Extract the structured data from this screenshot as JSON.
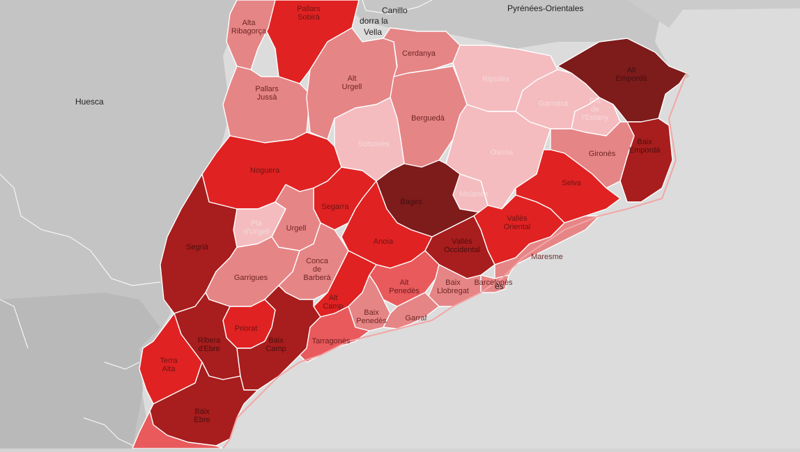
{
  "colors": {
    "water": "#dcdcdc",
    "land": "#c8c8c8",
    "border_line": "#ffffff",
    "coast": "#f0a0a0",
    "scale": [
      "#f4bcbf",
      "#e68586",
      "#e85a5c",
      "#e02222",
      "#a81d1d",
      "#7e1b1b"
    ]
  },
  "place_labels": {
    "huesca": "Huesca",
    "pyrenees_orientales": "Pyrénées-Orientales",
    "canillo": "Canillo",
    "andorra_1": "dorra la",
    "andorra_2": "Vella",
    "barcelona_fragment": "ès"
  },
  "regions": [
    {
      "id": "pallars-sobira",
      "lines": [
        "Pallars",
        "Sobirà"
      ],
      "level": 4
    },
    {
      "id": "alta-ribagorca",
      "lines": [
        "Alta",
        "Ribagorça"
      ],
      "level": 2
    },
    {
      "id": "pallars-jussa",
      "lines": [
        "Pallars",
        "Jussà"
      ],
      "level": 2
    },
    {
      "id": "alt-urgell",
      "lines": [
        "Alt",
        "Urgell"
      ],
      "level": 2
    },
    {
      "id": "cerdanya",
      "lines": [
        "Cerdanya"
      ],
      "level": 2
    },
    {
      "id": "ripolles",
      "lines": [
        "Ripollès"
      ],
      "level": 1
    },
    {
      "id": "alt-emporda",
      "lines": [
        "Alt",
        "Empordà"
      ],
      "level": 6
    },
    {
      "id": "garrotxa",
      "lines": [
        "Garrotxa"
      ],
      "level": 1
    },
    {
      "id": "pla-estany",
      "lines": [
        "Pla",
        "de",
        "l'Estany"
      ],
      "level": 1
    },
    {
      "id": "bergueda",
      "lines": [
        "Berguedà"
      ],
      "level": 2
    },
    {
      "id": "solsones",
      "lines": [
        "Solsonès"
      ],
      "level": 1
    },
    {
      "id": "osona",
      "lines": [
        "Osona"
      ],
      "level": 1
    },
    {
      "id": "girones",
      "lines": [
        "Gironès"
      ],
      "level": 2
    },
    {
      "id": "baix-emporda",
      "lines": [
        "Baix",
        "Empordà"
      ],
      "level": 5
    },
    {
      "id": "noguera",
      "lines": [
        "Noguera"
      ],
      "level": 4
    },
    {
      "id": "selva",
      "lines": [
        "Selva"
      ],
      "level": 4
    },
    {
      "id": "segarra",
      "lines": [
        "Segarra"
      ],
      "level": 4
    },
    {
      "id": "bages",
      "lines": [
        "Bages"
      ],
      "level": 6
    },
    {
      "id": "moianes",
      "lines": [
        "Moianès"
      ],
      "level": 1
    },
    {
      "id": "valles-oriental",
      "lines": [
        "Vallès",
        "Oriental"
      ],
      "level": 4
    },
    {
      "id": "pla-urgell",
      "lines": [
        "Pla",
        "d'Urgell"
      ],
      "level": 1
    },
    {
      "id": "urgell",
      "lines": [
        "Urgell"
      ],
      "level": 2
    },
    {
      "id": "segria",
      "lines": [
        "Segrià"
      ],
      "level": 5
    },
    {
      "id": "anoia",
      "lines": [
        "Anoia"
      ],
      "level": 4
    },
    {
      "id": "valles-occidental",
      "lines": [
        "Vallès",
        "Occidental"
      ],
      "level": 5
    },
    {
      "id": "maresme",
      "lines": [
        "Maresme"
      ],
      "level": 2
    },
    {
      "id": "garrigues",
      "lines": [
        "Garrigues"
      ],
      "level": 2
    },
    {
      "id": "conca-barbera",
      "lines": [
        "Conca",
        "de",
        "Barberà"
      ],
      "level": 2
    },
    {
      "id": "alt-penedes",
      "lines": [
        "Alt",
        "Penedès"
      ],
      "level": 3
    },
    {
      "id": "baix-llobregat",
      "lines": [
        "Baix",
        "Llobregat"
      ],
      "level": 2
    },
    {
      "id": "barcelones",
      "lines": [
        "Barcelonès"
      ],
      "level": 2
    },
    {
      "id": "alt-camp",
      "lines": [
        "Alt",
        "Camp"
      ],
      "level": 4
    },
    {
      "id": "baix-penedes",
      "lines": [
        "Baix",
        "Penedès"
      ],
      "level": 2
    },
    {
      "id": "garraf",
      "lines": [
        "Garraf"
      ],
      "level": 2
    },
    {
      "id": "priorat",
      "lines": [
        "Priorat"
      ],
      "level": 4
    },
    {
      "id": "ribera-ebre",
      "lines": [
        "Ribera",
        "d'Ebre"
      ],
      "level": 5
    },
    {
      "id": "baix-camp",
      "lines": [
        "Baix",
        "Camp"
      ],
      "level": 5
    },
    {
      "id": "tarragones",
      "lines": [
        "Tarragonès"
      ],
      "level": 3
    },
    {
      "id": "terra-alta",
      "lines": [
        "Terra",
        "Alta"
      ],
      "level": 4
    },
    {
      "id": "baix-ebre",
      "lines": [
        "Baix",
        "Ebre"
      ],
      "level": 5
    },
    {
      "id": "montsia",
      "lines": [],
      "level": 3
    }
  ]
}
